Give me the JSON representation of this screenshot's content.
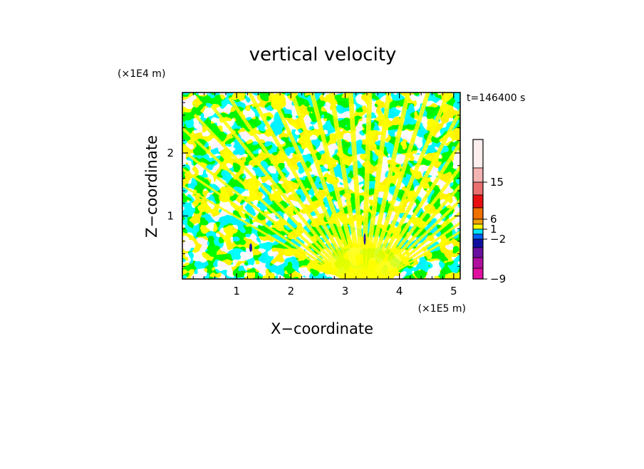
{
  "chart_data": {
    "type": "heatmap",
    "title": "vertical velocity",
    "xlabel": "X−coordinate",
    "ylabel": "Z−coordinate",
    "x_multiplier": "(×1E5 m)",
    "y_multiplier": "(×1E4 m)",
    "time_label": "t=146400 s",
    "xlim": [
      0,
      5.12
    ],
    "ylim": [
      0,
      2.96
    ],
    "x_ticks": [
      "1",
      "2",
      "3",
      "4",
      "5"
    ],
    "x_tick_values": [
      1,
      2,
      3,
      4,
      5
    ],
    "y_ticks": [
      "1",
      "2"
    ],
    "y_tick_values": [
      1,
      2
    ],
    "field_colors": {
      "positive": "#ffff00",
      "negative": "#00e5ff",
      "strong_negative": "#1a1aa0"
    },
    "colorbar": {
      "levels_top_to_bottom": [
        {
          "color": "#fdeeee"
        },
        {
          "color": "#f4b4b4"
        },
        {
          "color": "#ea7070"
        },
        {
          "color": "#e81010"
        },
        {
          "color": "#f07000"
        },
        {
          "color": "#f0a000"
        },
        {
          "color": "#ffff00"
        },
        {
          "color": "#00e5ff"
        },
        {
          "color": "#0060ff"
        },
        {
          "color": "#1010a0"
        },
        {
          "color": "#6a10a0"
        },
        {
          "color": "#b010a0"
        },
        {
          "color": "#e010a0"
        }
      ],
      "labels": [
        {
          "text": "15",
          "value": 15
        },
        {
          "text": "6",
          "value": 6
        },
        {
          "text": "1",
          "value": 1
        },
        {
          "text": "−2",
          "value": -2
        },
        {
          "text": "−9",
          "value": -9
        }
      ]
    }
  }
}
